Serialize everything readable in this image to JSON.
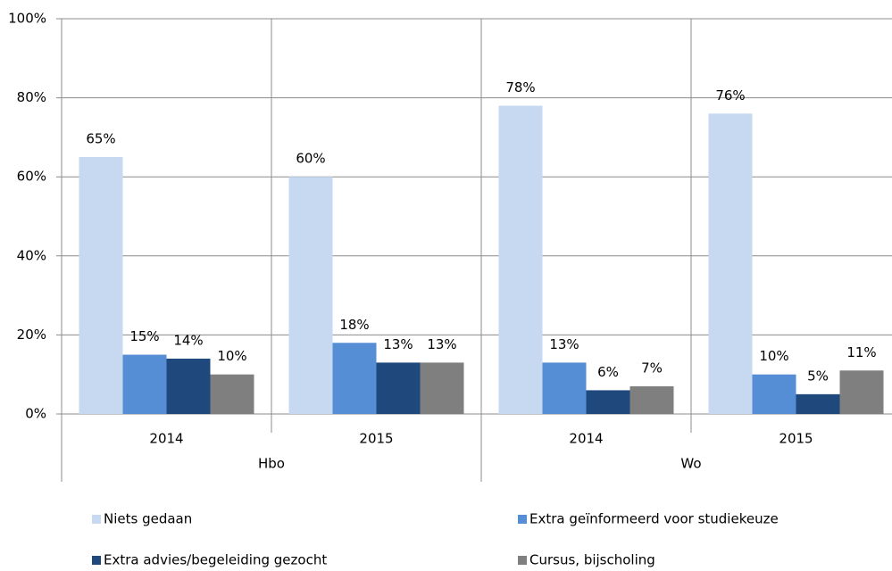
{
  "chart_data": {
    "type": "bar",
    "categories": [
      "2014",
      "2015",
      "2014",
      "2015"
    ],
    "group_labels": [
      "Hbo",
      "Wo"
    ],
    "series": [
      {
        "name": "Niets gedaan",
        "color": "#c6d9f1",
        "values": [
          65,
          60,
          78,
          76
        ],
        "value_labels": [
          "65%",
          "60%",
          "78%",
          "76%"
        ]
      },
      {
        "name": "Extra geïnformeerd voor studiekeuze",
        "color": "#558ed5",
        "values": [
          15,
          18,
          13,
          10
        ],
        "value_labels": [
          "15%",
          "18%",
          "13%",
          "10%"
        ]
      },
      {
        "name": "Extra advies/begeleiding gezocht",
        "color": "#1f497d",
        "values": [
          14,
          13,
          6,
          5
        ],
        "value_labels": [
          "14%",
          "13%",
          "6%",
          "5%"
        ]
      },
      {
        "name": "Cursus, bijscholing",
        "color": "#7f7f7f",
        "values": [
          10,
          13,
          7,
          11
        ],
        "value_labels": [
          "10%",
          "13%",
          "7%",
          "11%"
        ]
      }
    ],
    "ylim": [
      0,
      100
    ],
    "yticks": [
      {
        "value": 0,
        "label": "0%"
      },
      {
        "value": 20,
        "label": "20%"
      },
      {
        "value": 40,
        "label": "40%"
      },
      {
        "value": 60,
        "label": "60%"
      },
      {
        "value": 80,
        "label": "80%"
      },
      {
        "value": 100,
        "label": "100%"
      }
    ],
    "grid": true
  }
}
